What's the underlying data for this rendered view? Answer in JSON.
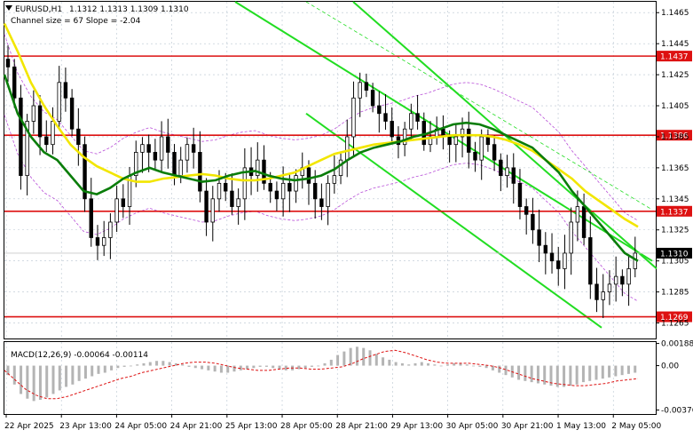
{
  "header": {
    "symbol_label": "EURUSD,H1",
    "ohlc": "1.1312 1.1313 1.1309 1.1310",
    "channel_info": "Channel size = 67 Slope = -2.04",
    "arrow_icon": "triangle-down-icon"
  },
  "colors": {
    "background": "#ffffff",
    "candles": "#000000",
    "ma_fast": "#0a7d0a",
    "ma_slow": "#f2e600",
    "channel": "#22dd22",
    "bollinger": "#b84fd8",
    "levels": "#dd1111",
    "macd_hist": "#b4b4b4",
    "macd_signal": "#dd1111",
    "grid": "#b8c4d0"
  },
  "chart_data": [
    {
      "type": "candlestick",
      "symbol": "EURUSD",
      "timeframe": "H1",
      "ylim": [
        1.1255,
        1.1472
      ],
      "y_ticks": [
        "1.1465",
        "1.1445",
        "1.1425",
        "1.1405",
        "1.1385",
        "1.1365",
        "1.1345",
        "1.1325",
        "1.1305",
        "1.1285",
        "1.1265"
      ],
      "x_ticks": [
        "22 Apr 2025",
        "23 Apr 13:00",
        "24 Apr 05:00",
        "24 Apr 21:00",
        "25 Apr 13:00",
        "28 Apr 05:00",
        "28 Apr 21:00",
        "29 Apr 13:00",
        "30 Apr 05:00",
        "30 Apr 21:00",
        "1 May 13:00",
        "2 May 05:00"
      ],
      "grid": true,
      "price_levels": [
        {
          "value": 1.1437,
          "label": "1.1437"
        },
        {
          "value": 1.1386,
          "label": "1.1386"
        },
        {
          "value": 1.1337,
          "label": "1.1337"
        },
        {
          "value": 1.1269,
          "label": "1.1269"
        }
      ],
      "current_price": {
        "value": 1.131,
        "label": "1.1310"
      },
      "close_series": [
        1.143,
        1.141,
        1.136,
        1.1395,
        1.1405,
        1.1385,
        1.138,
        1.1395,
        1.142,
        1.141,
        1.139,
        1.138,
        1.1345,
        1.132,
        1.1315,
        1.132,
        1.133,
        1.1345,
        1.134,
        1.136,
        1.1375,
        1.138,
        1.1375,
        1.137,
        1.1385,
        1.1375,
        1.136,
        1.137,
        1.138,
        1.1375,
        1.135,
        1.133,
        1.1345,
        1.1355,
        1.135,
        1.134,
        1.1345,
        1.1365,
        1.136,
        1.137,
        1.1355,
        1.135,
        1.1345,
        1.1355,
        1.135,
        1.136,
        1.1365,
        1.1355,
        1.1345,
        1.134,
        1.1355,
        1.136,
        1.137,
        1.1385,
        1.141,
        1.142,
        1.1415,
        1.1405,
        1.14,
        1.1395,
        1.1385,
        1.138,
        1.139,
        1.14,
        1.1395,
        1.138,
        1.1385,
        1.139,
        1.1385,
        1.138,
        1.1385,
        1.139,
        1.1375,
        1.137,
        1.1385,
        1.138,
        1.137,
        1.136,
        1.1365,
        1.1355,
        1.134,
        1.1335,
        1.1325,
        1.1315,
        1.131,
        1.1305,
        1.13,
        1.131,
        1.133,
        1.134,
        1.132,
        1.129,
        1.128,
        1.1285,
        1.129,
        1.1295,
        1.129,
        1.13,
        1.131
      ],
      "series": [
        {
          "name": "",
          "kind": "moving-average-fast",
          "values": [
            1.1425,
            1.14,
            1.1385,
            1.1375,
            1.137,
            1.136,
            1.135,
            1.1348,
            1.1352,
            1.1358,
            1.1362,
            1.1365,
            1.1362,
            1.136,
            1.1358,
            1.1356,
            1.1357,
            1.136,
            1.1362,
            1.1363,
            1.136,
            1.1358,
            1.1357,
            1.1358,
            1.136,
            1.1364,
            1.137,
            1.1375,
            1.1378,
            1.138,
            1.1382,
            1.1385,
            1.1387,
            1.139,
            1.1393,
            1.1394,
            1.1393,
            1.139,
            1.1386,
            1.1382,
            1.1378,
            1.137,
            1.1362,
            1.135,
            1.134,
            1.133,
            1.132,
            1.131,
            1.1305
          ]
        },
        {
          "name": "",
          "kind": "moving-average-slow",
          "values": [
            1.1458,
            1.144,
            1.142,
            1.1405,
            1.1392,
            1.138,
            1.1372,
            1.1366,
            1.1362,
            1.1358,
            1.1356,
            1.1356,
            1.1358,
            1.1359,
            1.136,
            1.1361,
            1.136,
            1.1358,
            1.1357,
            1.1357,
            1.1358,
            1.136,
            1.1362,
            1.1366,
            1.137,
            1.1374,
            1.1376,
            1.1378,
            1.138,
            1.1381,
            1.1382,
            1.1383,
            1.1384,
            1.1385,
            1.1386,
            1.1386,
            1.1386,
            1.1385,
            1.1383,
            1.138,
            1.1376,
            1.137,
            1.1364,
            1.1358,
            1.135,
            1.1344,
            1.1338,
            1.1332,
            1.1327
          ]
        }
      ]
    },
    {
      "type": "bar",
      "indicator_label": "MACD(12,26,9) -0.00064 -0.00114",
      "ylim": [
        -0.0041,
        0.002
      ],
      "y_ticks": [
        "0.00188",
        "0.00",
        "-0.00376"
      ],
      "series": [
        {
          "name": "",
          "kind": "histogram",
          "values": [
            -0.0008,
            -0.0016,
            -0.0024,
            -0.0028,
            -0.003,
            -0.0029,
            -0.0027,
            -0.0024,
            -0.0021,
            -0.0018,
            -0.0016,
            -0.0013,
            -0.0011,
            -0.0009,
            -0.0007,
            -0.0006,
            -0.0004,
            -0.0002,
            -0.0001,
            0.0,
            0.0001,
            0.0002,
            0.0003,
            0.0004,
            0.0004,
            0.0003,
            0.0002,
            0.0001,
            -0.0001,
            -0.0002,
            -0.0003,
            -0.0004,
            -0.0005,
            -0.0006,
            -0.0006,
            -0.0005,
            -0.0004,
            -0.0003,
            -0.0002,
            -0.0001,
            -0.0001,
            -0.0002,
            -0.0003,
            -0.0004,
            -0.0004,
            -0.0003,
            -0.0002,
            -0.0001,
            0.0,
            0.0002,
            0.0005,
            0.0009,
            0.0012,
            0.0015,
            0.0016,
            0.0015,
            0.0013,
            0.001,
            0.0007,
            0.0005,
            0.0003,
            0.0002,
            0.0001,
            0.0002,
            0.0003,
            0.0002,
            0.0001,
            0.0,
            0.0001,
            0.0002,
            0.0002,
            0.0001,
            0.0,
            -0.0001,
            -0.0002,
            -0.0004,
            -0.0006,
            -0.0008,
            -0.001,
            -0.0012,
            -0.0013,
            -0.0014,
            -0.0015,
            -0.0016,
            -0.0017,
            -0.0018,
            -0.0018,
            -0.0017,
            -0.0016,
            -0.0014,
            -0.0013,
            -0.0012,
            -0.0011,
            -0.001,
            -0.0009,
            -0.0008,
            -0.0007,
            -0.0006
          ]
        },
        {
          "name": "",
          "kind": "signal",
          "values": [
            -0.0004,
            -0.0012,
            -0.002,
            -0.0025,
            -0.0028,
            -0.0028,
            -0.0026,
            -0.0023,
            -0.002,
            -0.0017,
            -0.0014,
            -0.0011,
            -0.0009,
            -0.0006,
            -0.0004,
            -0.0002,
            0.0,
            0.0002,
            0.0003,
            0.0003,
            0.0002,
            0.0,
            -0.0002,
            -0.0003,
            -0.0004,
            -0.0004,
            -0.0003,
            -0.0002,
            -0.0002,
            -0.0003,
            -0.0003,
            -0.0002,
            -0.0001,
            0.0002,
            0.0006,
            0.0009,
            0.0012,
            0.0013,
            0.0011,
            0.0008,
            0.0005,
            0.0003,
            0.0002,
            0.0002,
            0.0002,
            0.0001,
            0.0,
            -0.0002,
            -0.0005,
            -0.0008,
            -0.0011,
            -0.0013,
            -0.0015,
            -0.0016,
            -0.0017,
            -0.0017,
            -0.0016,
            -0.0015,
            -0.0013,
            -0.0012,
            -0.0011
          ]
        }
      ]
    }
  ]
}
